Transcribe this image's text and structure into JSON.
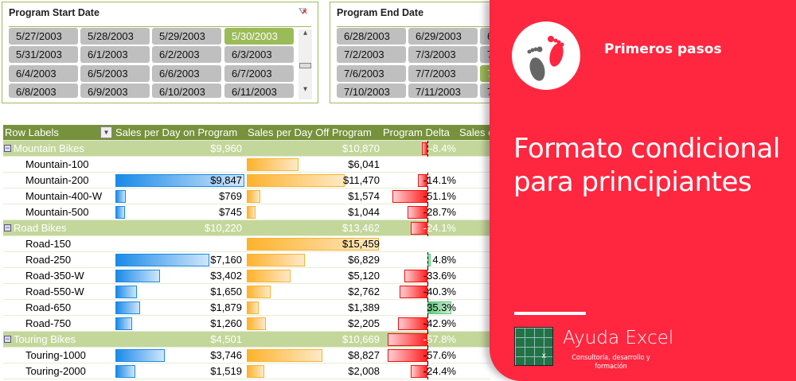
{
  "slicers": [
    {
      "title": "Program Start Date",
      "dates": [
        [
          "5/27/2003",
          "5/28/2003",
          "5/29/2003",
          "5/30/2003"
        ],
        [
          "5/31/2003",
          "6/1/2003",
          "6/2/2003",
          "6/3/2003"
        ],
        [
          "6/4/2003",
          "6/5/2003",
          "6/6/2003",
          "6/7/2003"
        ],
        [
          "6/8/2003",
          "6/9/2003",
          "6/10/2003",
          "6/11/2003"
        ]
      ],
      "selected": "5/30/2003"
    },
    {
      "title": "Program End Date",
      "dates": [
        [
          "6/28/2003",
          "6/29/2003",
          "6"
        ],
        [
          "7/2/2003",
          "7/3/2003",
          "7"
        ],
        [
          "7/6/2003",
          "7/7/2003",
          "7"
        ],
        [
          "7/10/2003",
          "7/11/2003",
          "7"
        ]
      ],
      "selected_col3_row": 2
    }
  ],
  "table": {
    "headers": [
      "Row Labels",
      "Sales per Day on Program",
      "Sales per Day Off Program",
      "Program Delta",
      "Sales o"
    ],
    "rows": [
      {
        "label": "Mountain Bikes",
        "group": true,
        "on": "$9,960",
        "off": "$10,870",
        "delta": "-8.4%",
        "d": -8.4
      },
      {
        "label": "Mountain-100",
        "on": "",
        "off": "$6,041",
        "delta": "",
        "onv": 0,
        "offv": 6041
      },
      {
        "label": "Mountain-200",
        "on": "$9,847",
        "off": "$11,470",
        "delta": "-14.1%",
        "onv": 9847,
        "offv": 11470,
        "d": -14.1
      },
      {
        "label": "Mountain-400-W",
        "on": "$769",
        "off": "$1,574",
        "delta": "-51.1%",
        "onv": 769,
        "offv": 1574,
        "d": -51.1
      },
      {
        "label": "Mountain-500",
        "on": "$745",
        "off": "$1,044",
        "delta": "-28.7%",
        "onv": 745,
        "offv": 1044,
        "d": -28.7
      },
      {
        "label": "Road Bikes",
        "group": true,
        "on": "$10,220",
        "off": "$13,462",
        "delta": "-24.1%",
        "d": -24.1
      },
      {
        "label": "Road-150",
        "on": "",
        "off": "$15,459",
        "delta": "",
        "onv": 0,
        "offv": 15459
      },
      {
        "label": "Road-250",
        "on": "$7,160",
        "off": "$6,829",
        "delta": "4.8%",
        "onv": 7160,
        "offv": 6829,
        "d": 4.8
      },
      {
        "label": "Road-350-W",
        "on": "$3,402",
        "off": "$5,120",
        "delta": "-33.6%",
        "onv": 3402,
        "offv": 5120,
        "d": -33.6
      },
      {
        "label": "Road-550-W",
        "on": "$1,650",
        "off": "$2,762",
        "delta": "-40.3%",
        "onv": 1650,
        "offv": 2762,
        "d": -40.3
      },
      {
        "label": "Road-650",
        "on": "$1,879",
        "off": "$1,389",
        "delta": "35.3%",
        "onv": 1879,
        "offv": 1389,
        "d": 35.3
      },
      {
        "label": "Road-750",
        "on": "$1,260",
        "off": "$2,205",
        "delta": "-42.9%",
        "onv": 1260,
        "offv": 2205,
        "d": -42.9
      },
      {
        "label": "Touring Bikes",
        "group": true,
        "on": "$4,501",
        "off": "$10,669",
        "delta": "-57.8%",
        "d": -57.8
      },
      {
        "label": "Touring-1000",
        "on": "$3,746",
        "off": "$8,827",
        "delta": "-57.6%",
        "onv": 3746,
        "offv": 8827,
        "d": -57.6
      },
      {
        "label": "Touring-2000",
        "on": "$1,519",
        "off": "$2,008",
        "delta": "-24.4%",
        "onv": 1519,
        "offv": 2008,
        "d": -24.4
      }
    ]
  },
  "panel": {
    "badge": "Primeros pasos",
    "title_line1": "Formato condicional",
    "title_line2": "para principiantes",
    "brand": "Ayuda Excel",
    "tagline_line1": "Consultoría, desarrollo y",
    "tagline_line2": "formación",
    "color": "#ff2640"
  }
}
